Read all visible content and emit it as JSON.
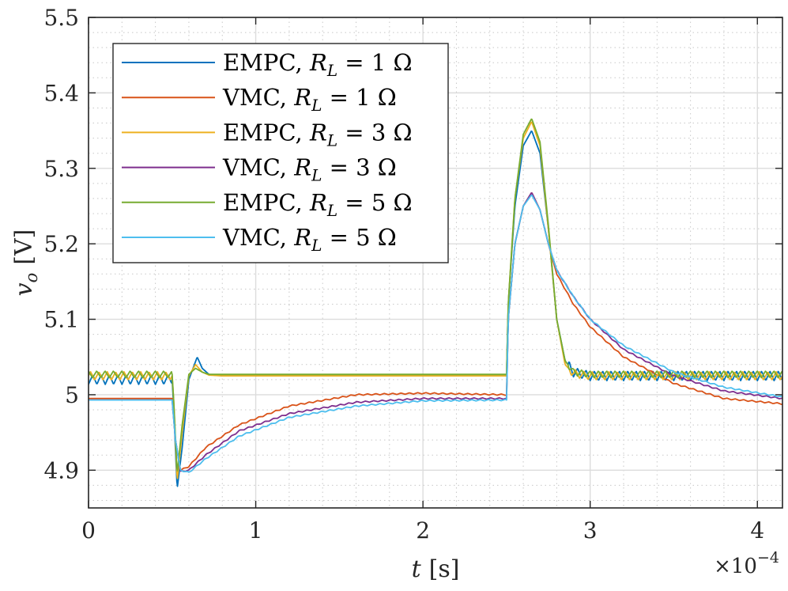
{
  "chart_data": {
    "type": "line",
    "xlabel_var": "t",
    "xlabel_unit": "[s]",
    "ylabel_var": "v",
    "ylabel_sub": "o",
    "ylabel_unit": "[V]",
    "x_multiplier": "×10",
    "x_multiplier_exp": "−4",
    "xlim": [
      0,
      4.15
    ],
    "ylim": [
      4.85,
      5.5
    ],
    "xticks": [
      0,
      1,
      2,
      3,
      4
    ],
    "xtick_labels": [
      "0",
      "1",
      "2",
      "3",
      "4"
    ],
    "yticks": [
      4.9,
      5.0,
      5.1,
      5.2,
      5.3,
      5.4,
      5.5
    ],
    "ytick_labels": [
      "4.9",
      "5",
      "5.1",
      "5.2",
      "5.3",
      "5.4",
      "5.5"
    ],
    "grid": "major and minor (dotted)",
    "legend_position": "top-left",
    "series": [
      {
        "name": "EMPC, R_L = 1 Ω",
        "legend_prefix": "EMPC, ",
        "legend_R": "1",
        "color": "#0072BD",
        "x": [
          0,
          0.5,
          0.51,
          0.53,
          0.56,
          0.6,
          0.65,
          0.68,
          0.72,
          0.8,
          1.0,
          2.0,
          2.5,
          2.51,
          2.55,
          2.6,
          2.65,
          2.7,
          2.75,
          2.8,
          2.85,
          2.9,
          3.0,
          3.5,
          4.15
        ],
        "y": [
          5.02,
          5.02,
          4.98,
          4.875,
          4.93,
          5.02,
          5.05,
          5.035,
          5.027,
          5.025,
          5.025,
          5.025,
          5.025,
          5.12,
          5.25,
          5.33,
          5.35,
          5.32,
          5.22,
          5.1,
          5.045,
          5.03,
          5.025,
          5.025,
          5.025
        ],
        "ripple_amplitude": 0.014,
        "ripple_zones": [
          [
            0,
            0.5
          ],
          [
            2.87,
            4.15
          ]
        ]
      },
      {
        "name": "VMC, R_L = 1 Ω",
        "legend_prefix": "VMC, ",
        "legend_R": "1",
        "color": "#D95319",
        "x": [
          0,
          0.5,
          0.52,
          0.55,
          0.6,
          0.7,
          0.9,
          1.2,
          1.6,
          2.0,
          2.5,
          2.51,
          2.55,
          2.6,
          2.65,
          2.7,
          2.75,
          2.8,
          2.9,
          3.0,
          3.2,
          3.5,
          3.8,
          4.15
        ],
        "y": [
          4.995,
          4.995,
          4.94,
          4.9,
          4.905,
          4.93,
          4.96,
          4.985,
          5.0,
          5.002,
          5.0,
          5.1,
          5.2,
          5.25,
          5.268,
          5.245,
          5.2,
          5.16,
          5.12,
          5.09,
          5.05,
          5.015,
          4.995,
          4.988
        ],
        "ripple_amplitude": 0.002,
        "ripple_zones": [
          [
            0.55,
            2.5
          ],
          [
            2.8,
            4.15
          ]
        ]
      },
      {
        "name": "EMPC, R_L = 3 Ω",
        "legend_prefix": "EMPC, ",
        "legend_R": "3",
        "color": "#EDB120",
        "x": [
          0,
          0.5,
          0.51,
          0.53,
          0.56,
          0.6,
          0.64,
          0.68,
          0.72,
          0.8,
          1.0,
          2.0,
          2.5,
          2.51,
          2.55,
          2.6,
          2.65,
          2.7,
          2.75,
          2.8,
          2.85,
          2.9,
          3.0,
          3.5,
          4.15
        ],
        "y": [
          5.025,
          5.025,
          4.99,
          4.885,
          4.95,
          5.025,
          5.04,
          5.03,
          5.026,
          5.025,
          5.025,
          5.025,
          5.025,
          5.12,
          5.26,
          5.34,
          5.362,
          5.33,
          5.22,
          5.1,
          5.04,
          5.028,
          5.025,
          5.025,
          5.025
        ],
        "ripple_amplitude": 0.012,
        "ripple_zones": [
          [
            0,
            0.5
          ],
          [
            2.87,
            4.15
          ]
        ]
      },
      {
        "name": "VMC, R_L = 3 Ω",
        "legend_prefix": "VMC, ",
        "legend_R": "3",
        "color": "#7E2F8E",
        "x": [
          0,
          0.5,
          0.52,
          0.55,
          0.6,
          0.7,
          0.9,
          1.2,
          1.6,
          2.0,
          2.5,
          2.51,
          2.55,
          2.6,
          2.65,
          2.7,
          2.75,
          2.8,
          2.9,
          3.0,
          3.2,
          3.5,
          3.8,
          4.15
        ],
        "y": [
          4.993,
          4.993,
          4.94,
          4.898,
          4.9,
          4.92,
          4.952,
          4.975,
          4.99,
          4.995,
          4.995,
          5.1,
          5.2,
          5.25,
          5.268,
          5.245,
          5.2,
          5.165,
          5.13,
          5.1,
          5.06,
          5.025,
          5.005,
          4.995
        ],
        "ripple_amplitude": 0.002,
        "ripple_zones": [
          [
            0.55,
            2.5
          ],
          [
            2.8,
            4.15
          ]
        ]
      },
      {
        "name": "EMPC, R_L = 5 Ω",
        "legend_prefix": "EMPC, ",
        "legend_R": "5",
        "color": "#77AC30",
        "x": [
          0,
          0.5,
          0.51,
          0.53,
          0.56,
          0.6,
          0.64,
          0.68,
          0.72,
          0.8,
          1.0,
          2.0,
          2.5,
          2.51,
          2.55,
          2.6,
          2.65,
          2.7,
          2.75,
          2.8,
          2.85,
          2.9,
          3.0,
          3.5,
          4.15
        ],
        "y": [
          5.027,
          5.027,
          4.99,
          4.895,
          4.96,
          5.027,
          5.035,
          5.03,
          5.027,
          5.027,
          5.027,
          5.027,
          5.027,
          5.12,
          5.26,
          5.345,
          5.366,
          5.335,
          5.225,
          5.1,
          5.045,
          5.03,
          5.027,
          5.027,
          5.027
        ],
        "ripple_amplitude": 0.01,
        "ripple_zones": [
          [
            0,
            0.5
          ],
          [
            2.87,
            4.15
          ]
        ]
      },
      {
        "name": "VMC, R_L = 5 Ω",
        "legend_prefix": "VMC, ",
        "legend_R": "5",
        "color": "#4DBEEE",
        "x": [
          0,
          0.5,
          0.52,
          0.55,
          0.6,
          0.7,
          0.9,
          1.2,
          1.6,
          2.0,
          2.5,
          2.51,
          2.55,
          2.6,
          2.65,
          2.7,
          2.75,
          2.8,
          2.9,
          3.0,
          3.2,
          3.5,
          3.8,
          4.15
        ],
        "y": [
          4.993,
          4.993,
          4.94,
          4.9,
          4.897,
          4.915,
          4.945,
          4.97,
          4.985,
          4.992,
          4.993,
          5.1,
          5.2,
          5.25,
          5.265,
          5.245,
          5.2,
          5.165,
          5.13,
          5.1,
          5.065,
          5.03,
          5.01,
          4.997
        ],
        "ripple_amplitude": 0.002,
        "ripple_zones": [
          [
            0.55,
            2.5
          ],
          [
            2.8,
            4.15
          ]
        ]
      }
    ]
  }
}
